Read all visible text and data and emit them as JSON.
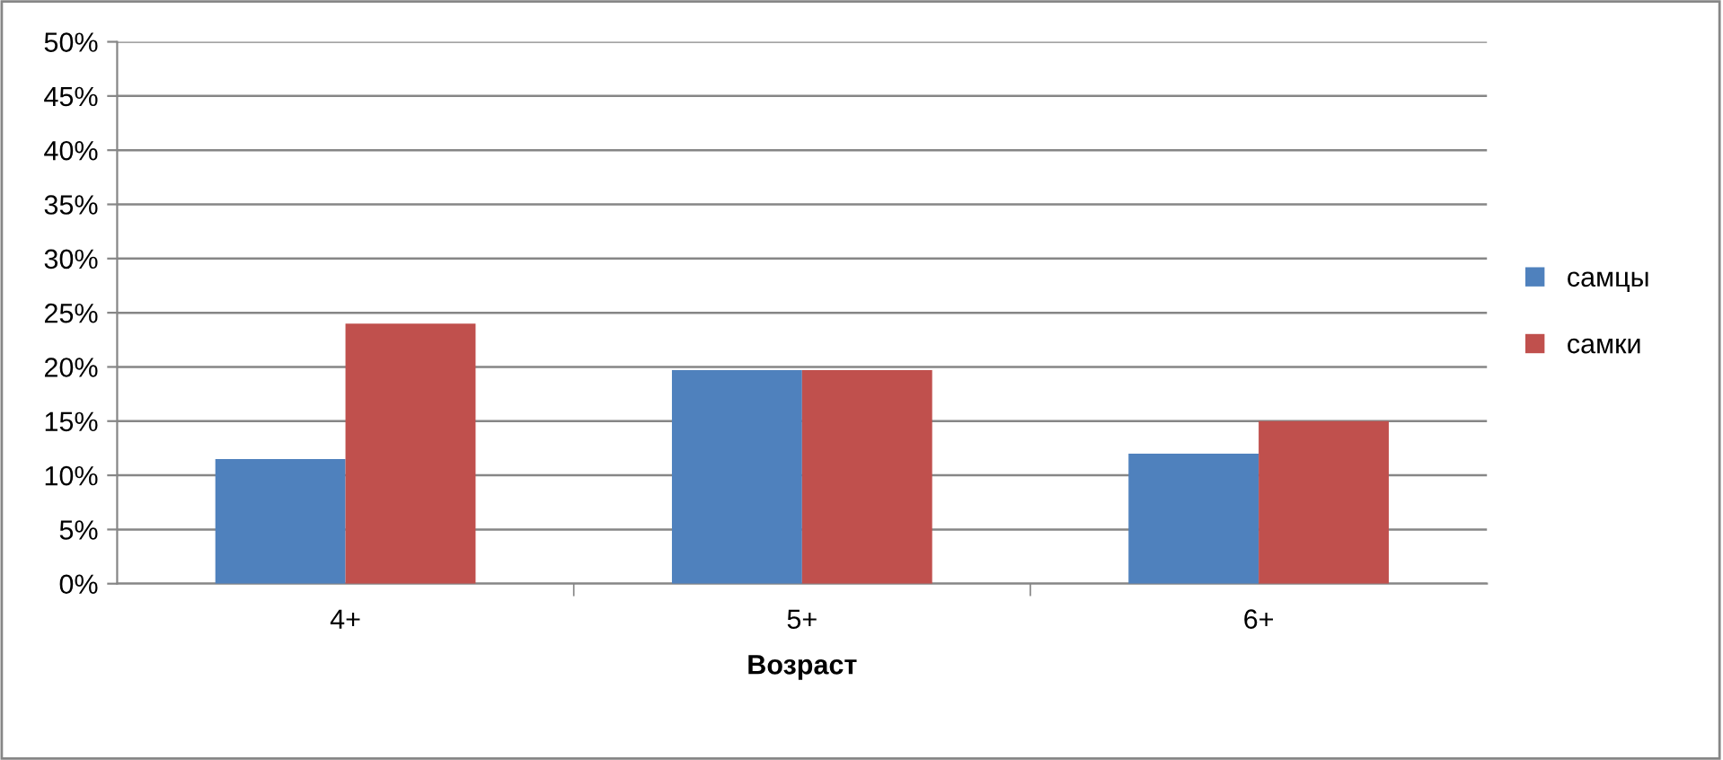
{
  "chart_data": {
    "type": "bar",
    "xlabel": "Возраст",
    "categories": [
      "4+",
      "5+",
      "6+"
    ],
    "series": [
      {
        "name": "самцы",
        "color": "#4f81bd",
        "values": [
          11.5,
          19.7,
          12
        ]
      },
      {
        "name": "самки",
        "color": "#c0504d",
        "values": [
          24,
          19.7,
          15
        ]
      }
    ],
    "ylim": [
      0,
      50
    ],
    "yticks": [
      {
        "value": 0,
        "label": "0%"
      },
      {
        "value": 5,
        "label": "5%"
      },
      {
        "value": 10,
        "label": "10%"
      },
      {
        "value": 15,
        "label": "15%"
      },
      {
        "value": 20,
        "label": "20%"
      },
      {
        "value": 25,
        "label": "25%"
      },
      {
        "value": 30,
        "label": "30%"
      },
      {
        "value": 35,
        "label": "35%"
      },
      {
        "value": 40,
        "label": "40%"
      },
      {
        "value": 45,
        "label": "45%"
      },
      {
        "value": 50,
        "label": "50%"
      }
    ],
    "grid": "y",
    "legend": "right"
  }
}
